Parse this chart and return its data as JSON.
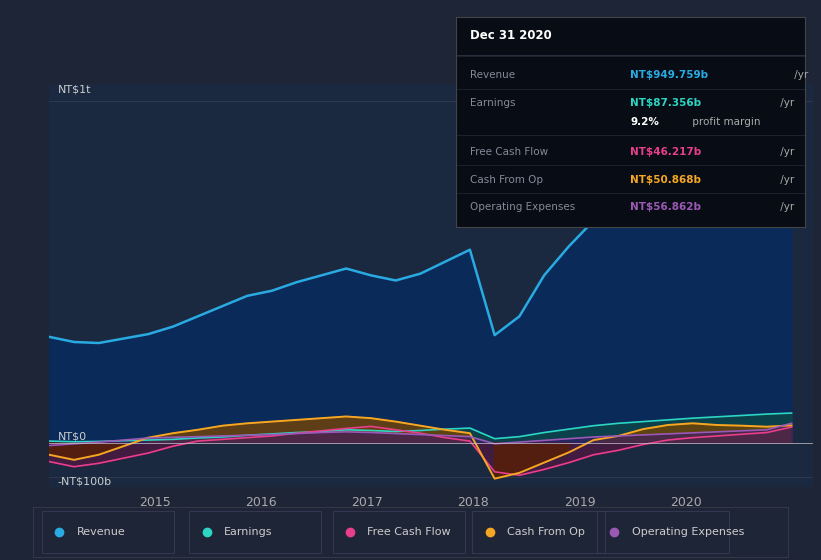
{
  "bg_color": "#1e2537",
  "chart_bg": "#182030",
  "plot_bg": "#1a2840",
  "title": "Dec 31 2020",
  "y_label_top": "NT$1t",
  "y_label_zero": "NT$0",
  "y_label_neg": "-NT$100b",
  "x_ticks": [
    2015,
    2016,
    2017,
    2018,
    2019,
    2020
  ],
  "ylim": [
    -130,
    1050
  ],
  "xlim": [
    2014.0,
    2021.2
  ],
  "legend": [
    {
      "label": "Revenue",
      "color": "#29abe2"
    },
    {
      "label": "Earnings",
      "color": "#2cd5c4"
    },
    {
      "label": "Free Cash Flow",
      "color": "#e83e8c"
    },
    {
      "label": "Cash From Op",
      "color": "#f5a623"
    },
    {
      "label": "Operating Expenses",
      "color": "#9b59b6"
    }
  ],
  "info_title": "Dec 31 2020",
  "info_rows": [
    {
      "label": "Revenue",
      "value": "NT$949.759b",
      "unit": " /yr",
      "color": "#29abe2"
    },
    {
      "label": "Earnings",
      "value": "NT$87.356b",
      "unit": " /yr",
      "color": "#2cd5c4"
    },
    {
      "label": "",
      "value": "9.2%",
      "unit": " profit margin",
      "color": "#ffffff"
    },
    {
      "label": "Free Cash Flow",
      "value": "NT$46.217b",
      "unit": " /yr",
      "color": "#e83e8c"
    },
    {
      "label": "Cash From Op",
      "value": "NT$50.868b",
      "unit": " /yr",
      "color": "#f5a623"
    },
    {
      "label": "Operating Expenses",
      "value": "NT$56.862b",
      "unit": " /yr",
      "color": "#9b59b6"
    }
  ],
  "revenue": [
    310,
    295,
    292,
    305,
    318,
    340,
    370,
    400,
    430,
    445,
    470,
    490,
    510,
    490,
    475,
    495,
    530,
    565,
    315,
    370,
    490,
    575,
    650,
    710,
    760,
    800,
    840,
    875,
    905,
    935,
    950
  ],
  "earnings": [
    5,
    3,
    4,
    6,
    8,
    10,
    14,
    17,
    22,
    26,
    30,
    33,
    38,
    36,
    33,
    36,
    40,
    43,
    12,
    18,
    30,
    40,
    50,
    57,
    62,
    67,
    72,
    76,
    80,
    84,
    87
  ],
  "free_cash_flow": [
    -55,
    -70,
    -60,
    -45,
    -30,
    -10,
    5,
    10,
    15,
    20,
    28,
    35,
    42,
    48,
    38,
    28,
    15,
    5,
    -85,
    -95,
    -78,
    -58,
    -35,
    -22,
    -5,
    8,
    15,
    20,
    25,
    30,
    46
  ],
  "cash_from_op": [
    -35,
    -50,
    -35,
    -10,
    15,
    28,
    38,
    50,
    57,
    62,
    67,
    72,
    77,
    72,
    62,
    50,
    38,
    28,
    -105,
    -88,
    -58,
    -28,
    8,
    20,
    40,
    52,
    57,
    52,
    50,
    47,
    51
  ],
  "operating_expenses": [
    -8,
    -3,
    2,
    8,
    14,
    16,
    18,
    20,
    22,
    24,
    27,
    30,
    32,
    30,
    27,
    24,
    21,
    18,
    -3,
    2,
    7,
    12,
    17,
    20,
    23,
    26,
    29,
    32,
    35,
    38,
    57
  ],
  "n_points": 31,
  "x_start": 2014.0,
  "x_end": 2021.0
}
